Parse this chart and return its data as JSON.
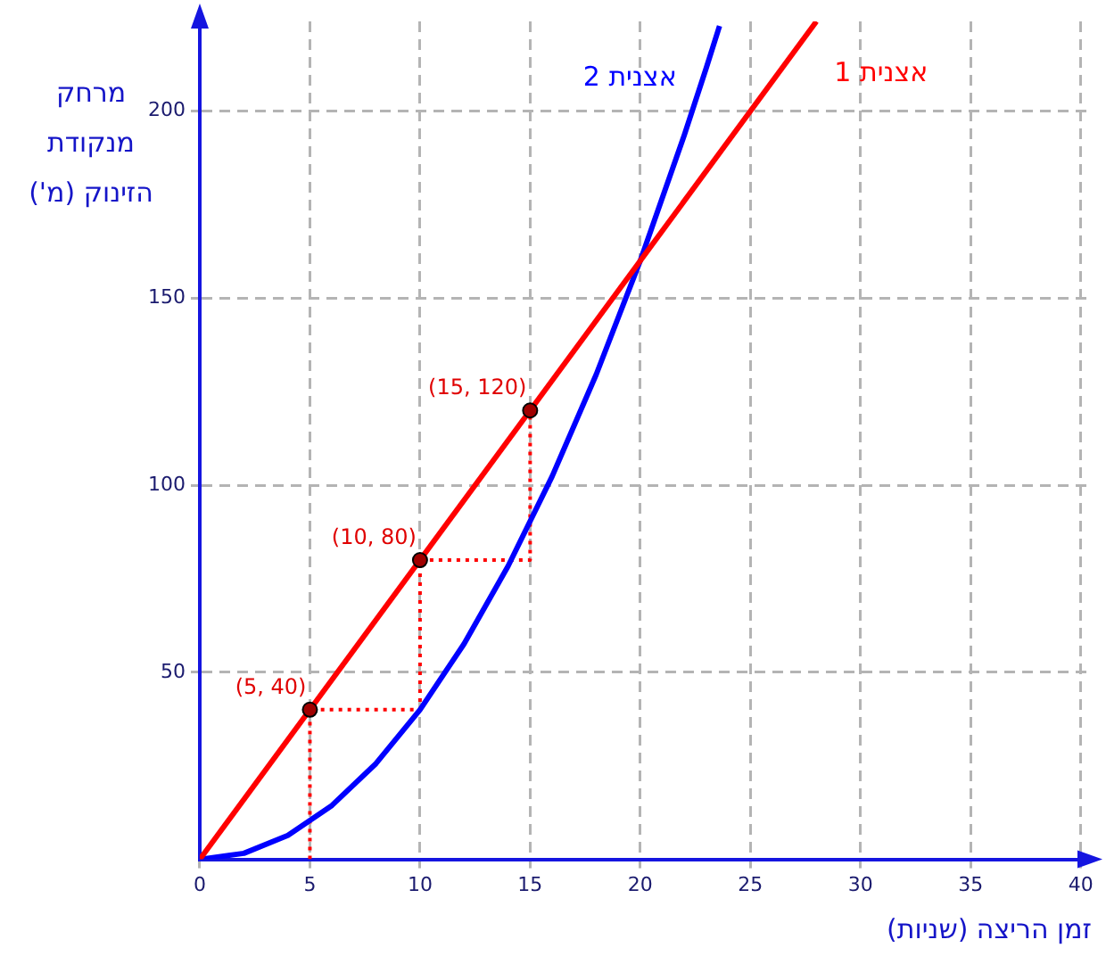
{
  "chart_data": {
    "type": "line",
    "xlabel": "זמן הריצה (שניות)",
    "ylabel": "מרחק מנקודת הזינוק (מ')",
    "xlim": [
      0,
      40.5
    ],
    "ylim": [
      0,
      224
    ],
    "xticks": [
      0,
      5,
      10,
      15,
      20,
      25,
      30,
      35,
      40
    ],
    "yticks": [
      50,
      100,
      150,
      200
    ],
    "grid": true,
    "legend": false,
    "marker": "none",
    "line_style": "solid",
    "series": [
      {
        "name": "אצנית 1",
        "color": "#ff0000",
        "x": [
          0,
          28
        ],
        "values": [
          0,
          224
        ]
      },
      {
        "name": "אצנית 2",
        "color": "#0000ff",
        "x": [
          0,
          2,
          4,
          6,
          8,
          10,
          12,
          14,
          16,
          18,
          20,
          22,
          23,
          23.6
        ],
        "values": [
          0,
          1.6,
          6.4,
          14.4,
          25.6,
          40,
          57.6,
          78.4,
          102.4,
          129.6,
          160,
          193.6,
          211.6,
          222.8
        ]
      },
      {
        "color": "#ff0000",
        "line_style": "dotted",
        "x": [
          5,
          5,
          10,
          10,
          15,
          15
        ],
        "values": [
          0,
          40,
          40,
          80,
          80,
          120
        ]
      },
      {
        "type": "scatter",
        "marker": "circle",
        "color": "#a00000",
        "x": [
          5,
          10,
          15
        ],
        "values": [
          40,
          80,
          120
        ]
      }
    ],
    "annotations": [
      {
        "text": "(5, 40)",
        "x": 5,
        "y": 40
      },
      {
        "text": "(10, 80)",
        "x": 10,
        "y": 80
      },
      {
        "text": "(15, 120)",
        "x": 15,
        "y": 120
      }
    ]
  }
}
